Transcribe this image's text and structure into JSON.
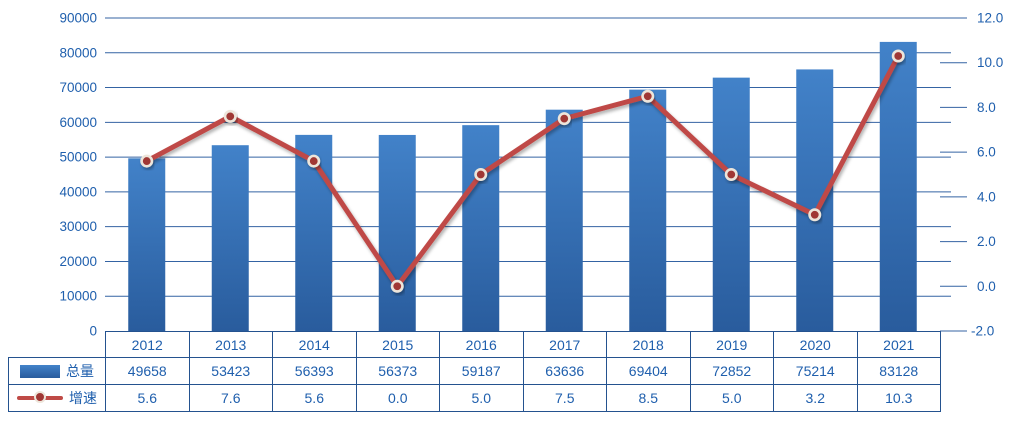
{
  "chart_data": {
    "type": "bar+line combo",
    "title": "",
    "categories": [
      "2012",
      "2013",
      "2014",
      "2015",
      "2016",
      "2017",
      "2018",
      "2019",
      "2020",
      "2021"
    ],
    "series": [
      {
        "name": "总量",
        "type": "bar",
        "axis": "left",
        "values": [
          49658,
          53423,
          56393,
          56373,
          59187,
          63636,
          69404,
          72852,
          75214,
          83128
        ]
      },
      {
        "name": "增速",
        "type": "line",
        "axis": "right",
        "values": [
          5.6,
          7.6,
          5.6,
          0.0,
          5.0,
          7.5,
          8.5,
          5.0,
          3.2,
          10.3
        ]
      }
    ],
    "left_axis": {
      "min": 0,
      "max": 90000,
      "ticks": [
        0,
        10000,
        20000,
        30000,
        40000,
        50000,
        60000,
        70000,
        80000,
        90000
      ]
    },
    "right_axis": {
      "min": -2.0,
      "max": 12.0,
      "ticks": [
        -2.0,
        0.0,
        2.0,
        4.0,
        6.0,
        8.0,
        10.0,
        12.0
      ]
    },
    "grid": true,
    "legend_position": "table-left"
  },
  "colors": {
    "bar_top": "#4282C9",
    "bar_bottom": "#295C9D",
    "line": "#BF4A46",
    "marker_fill": "#A03734",
    "marker_ring": "#EDE5DA",
    "grid": "#3463A3",
    "table_border": "#24528F",
    "text": "#1F5FAD"
  }
}
